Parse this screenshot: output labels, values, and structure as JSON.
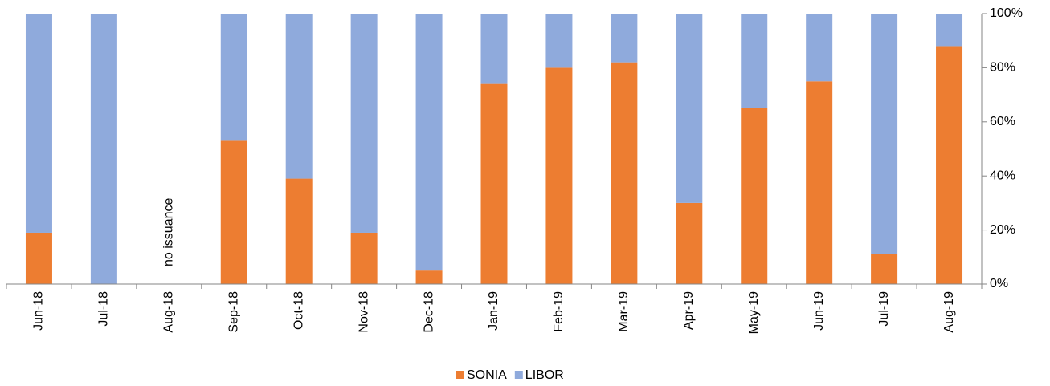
{
  "chart_data": {
    "type": "stacked_bar",
    "categories": [
      "Jun-18",
      "Jul-18",
      "Aug-18",
      "Sep-18",
      "Oct-18",
      "Nov-18",
      "Dec-18",
      "Jan-19",
      "Feb-19",
      "Mar-19",
      "Apr-19",
      "May-19",
      "Jun-19",
      "Jul-19",
      "Aug-19"
    ],
    "series": [
      {
        "name": "SONIA",
        "color": "#ed7d31",
        "values": [
          19,
          0,
          null,
          53,
          39,
          19,
          5,
          74,
          80,
          82,
          30,
          65,
          75,
          11,
          88
        ]
      },
      {
        "name": "LIBOR",
        "color": "#8faadc",
        "values": [
          81,
          100,
          null,
          47,
          61,
          81,
          95,
          26,
          20,
          18,
          70,
          35,
          25,
          89,
          12
        ]
      }
    ],
    "annotation": "no issuance",
    "ylim": [
      0,
      100
    ],
    "yticks": [
      {
        "value": 0,
        "label": "0%"
      },
      {
        "value": 20,
        "label": "20%"
      },
      {
        "value": 40,
        "label": "40%"
      },
      {
        "value": 60,
        "label": "60%"
      },
      {
        "value": 80,
        "label": "80%"
      },
      {
        "value": 100,
        "label": "100%"
      }
    ],
    "legend": "bottom"
  }
}
